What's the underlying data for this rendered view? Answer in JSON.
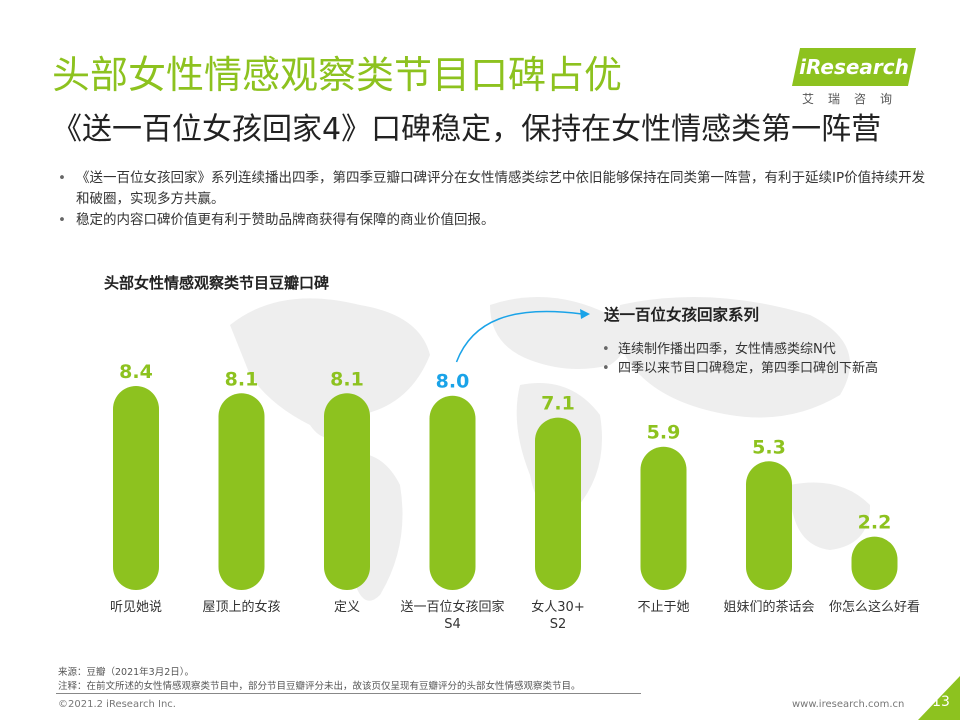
{
  "header": {
    "title": "头部女性情感观察类节目口碑占优",
    "subtitle": "《送一百位女孩回家4》口碑稳定，保持在女性情感类第一阵营"
  },
  "logo": {
    "text": "iResearch",
    "cn": "艾瑞咨询",
    "color": "#8dc21f"
  },
  "bullets": [
    "《送一百位女孩回家》系列连续播出四季，第四季豆瓣口碑评分在女性情感类综艺中依旧能够保持在同类第一阵营，有利于延续IP价值持续开发和破圈，实现多方共赢。",
    "稳定的内容口碑价值更有利于赞助品牌商获得有保障的商业价值回报。"
  ],
  "callout": {
    "title": "送一百位女孩回家系列",
    "items": [
      "连续制作播出四季，女性情感类综N代",
      "四季以来节目口碑稳定，第四季口碑创下新高"
    ]
  },
  "chart_data": {
    "type": "bar",
    "title": "头部女性情感观察类节目豆瓣口碑",
    "categories": [
      "听见她说",
      "屋顶上的女孩",
      "定义",
      "送一百位女孩回家 S4",
      "女人30+ S2",
      "不止于她",
      "姐妹们的茶话会",
      "你怎么这么好看"
    ],
    "category_lines": [
      [
        "听见她说"
      ],
      [
        "屋顶上的女孩"
      ],
      [
        "定义"
      ],
      [
        "送一百位女孩回家",
        "S4"
      ],
      [
        "女人30+",
        "S2"
      ],
      [
        "不止于她"
      ],
      [
        "姐妹们的茶话会"
      ],
      [
        "你怎么这么好看"
      ]
    ],
    "values": [
      8.4,
      8.1,
      8.1,
      8.0,
      7.1,
      5.9,
      5.3,
      2.2
    ],
    "value_labels": [
      "8.4",
      "8.1",
      "8.1",
      "8.0",
      "7.1",
      "5.9",
      "5.3",
      "2.2"
    ],
    "highlight_index": 3,
    "ylim": [
      0,
      8.4
    ],
    "bar_color": "#8dc21f",
    "label_color": "#8dc21f",
    "highlight_label_color": "#1aa3e8",
    "grid": false,
    "bar_shape": "rounded-pill"
  },
  "footer": {
    "source": "来源：豆瓣（2021年3月2日）。",
    "note": "注释：在前文所述的女性情感观察类节目中，部分节目豆瓣评分未出，故该页仅呈现有豆瓣评分的头部女性情感观察类节目。",
    "copyright": "©2021.2 iResearch Inc.",
    "website": "www.iresearch.com.cn",
    "page_number": "13"
  }
}
